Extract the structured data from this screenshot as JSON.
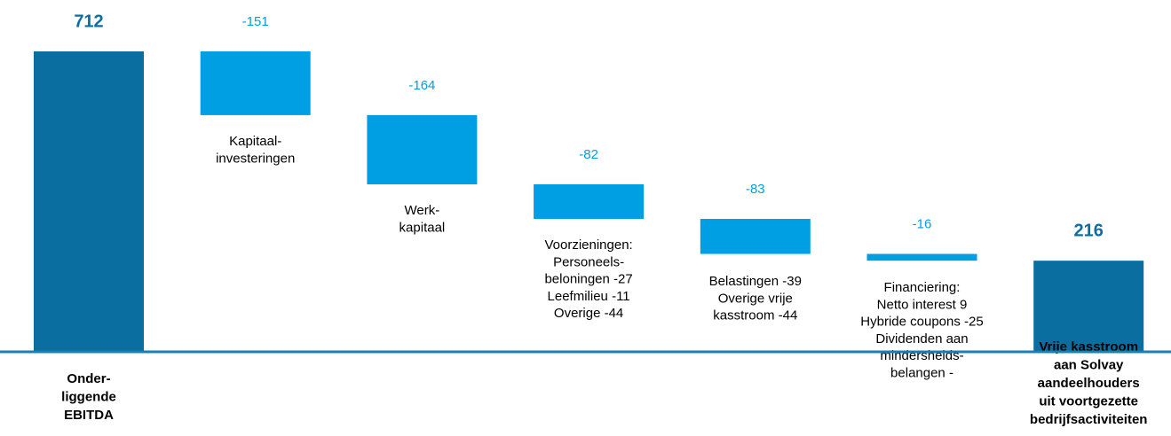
{
  "chart_data": {
    "type": "waterfall",
    "categories": [
      [
        "Onder-",
        "liggende",
        "EBITDA"
      ],
      [
        "Kapitaal-",
        "investeringen"
      ],
      [
        "Werk-",
        "kapitaal"
      ],
      [
        "Voorzieningen:",
        "Personeels-",
        "beloningen -27",
        "Leefmilieu -11",
        "Overige -44"
      ],
      [
        "Belastingen -39",
        "Overige vrije",
        "kasstroom -44"
      ],
      [
        "Financiering:",
        "Netto interest 9",
        "Hybride coupons -25",
        "Dividenden aan",
        "mindersheids-",
        "belangen -"
      ],
      [
        "Vrije kasstroom",
        "aan Solvay",
        "aandeelhouders",
        "uit voortgezette",
        "bedrijfsactiviteiten"
      ]
    ],
    "values": [
      712,
      -151,
      -164,
      -82,
      -83,
      -16,
      216
    ],
    "total_color": "#0a6fa0",
    "delta_color": "#009fe3"
  }
}
